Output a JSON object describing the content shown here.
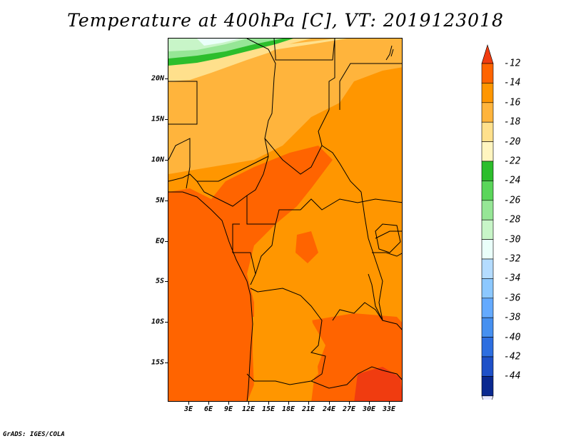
{
  "title": "Temperature at 400hPa [C], VT: 2019123018",
  "credit": "GrADS: IGES/COLA",
  "latitude_labels": [
    "20N",
    "15N",
    "10N",
    "5N",
    "EQ",
    "5S",
    "10S",
    "15S"
  ],
  "longitude_labels": [
    "3E",
    "6E",
    "9E",
    "12E",
    "15E",
    "18E",
    "21E",
    "24E",
    "27E",
    "30E",
    "33E"
  ],
  "colorbar": {
    "labels": [
      "-12",
      "-14",
      "-16",
      "-18",
      "-20",
      "-22",
      "-24",
      "-26",
      "-28",
      "-30",
      "-32",
      "-34",
      "-36",
      "-38",
      "-40",
      "-42",
      "-44"
    ],
    "colors": [
      "#f03c10",
      "#ff6400",
      "#ff9600",
      "#ffb43c",
      "#ffe08c",
      "#fff5c0",
      "#2cbe2c",
      "#5ad65a",
      "#96e696",
      "#c8f5c8",
      "#eafffa",
      "#b4dcff",
      "#8cc8ff",
      "#64aaff",
      "#4690f0",
      "#2d6ee0",
      "#1e50c8",
      "#0a2890",
      "#e8e8ff"
    ]
  },
  "colors": {
    "t_minus_12_to_14": "#ff6400",
    "t_minus_14_to_16": "#ff9600",
    "t_minus_16_to_18": "#ffb43c",
    "t_minus_18_to_20": "#ffe08c",
    "t_minus_20_to_22": "#fff5c0",
    "t_minus_22_to_24": "#2cbe2c",
    "t_minus_24_to_26": "#5ad65a",
    "t_minus_26_to_28": "#96e696",
    "t_minus_28_to_30": "#c8f5c8",
    "t_minus_30_to_32": "#eafffa"
  }
}
